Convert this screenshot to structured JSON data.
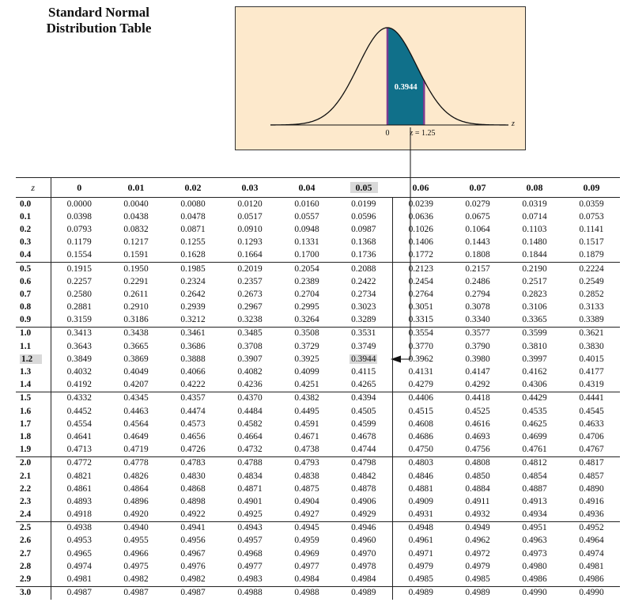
{
  "title": [
    "Standard Normal",
    "Distribution Table"
  ],
  "figure": {
    "area_value": "0.3944",
    "zero_label": "0",
    "z_label": "z = 1.25",
    "axis_label": "z",
    "z_end": 1.25,
    "fill_color": "#10708a",
    "edge_color": "#7b3c8f",
    "background": "#fde9cc"
  },
  "table": {
    "corner_label": "z",
    "column_headers": [
      "0",
      "0.01",
      "0.02",
      "0.03",
      "0.04",
      "0.05",
      "0.06",
      "0.07",
      "0.08",
      "0.09"
    ],
    "highlight": {
      "row": "1.2",
      "column": "0.05",
      "value": "0.3944"
    },
    "rows": [
      {
        "z": "0.0",
        "v": [
          "0.0000",
          "0.0040",
          "0.0080",
          "0.0120",
          "0.0160",
          "0.0199",
          "0.0239",
          "0.0279",
          "0.0319",
          "0.0359"
        ]
      },
      {
        "z": "0.1",
        "v": [
          "0.0398",
          "0.0438",
          "0.0478",
          "0.0517",
          "0.0557",
          "0.0596",
          "0.0636",
          "0.0675",
          "0.0714",
          "0.0753"
        ]
      },
      {
        "z": "0.2",
        "v": [
          "0.0793",
          "0.0832",
          "0.0871",
          "0.0910",
          "0.0948",
          "0.0987",
          "0.1026",
          "0.1064",
          "0.1103",
          "0.1141"
        ]
      },
      {
        "z": "0.3",
        "v": [
          "0.1179",
          "0.1217",
          "0.1255",
          "0.1293",
          "0.1331",
          "0.1368",
          "0.1406",
          "0.1443",
          "0.1480",
          "0.1517"
        ]
      },
      {
        "z": "0.4",
        "v": [
          "0.1554",
          "0.1591",
          "0.1628",
          "0.1664",
          "0.1700",
          "0.1736",
          "0.1772",
          "0.1808",
          "0.1844",
          "0.1879"
        ]
      },
      {
        "z": "0.5",
        "v": [
          "0.1915",
          "0.1950",
          "0.1985",
          "0.2019",
          "0.2054",
          "0.2088",
          "0.2123",
          "0.2157",
          "0.2190",
          "0.2224"
        ]
      },
      {
        "z": "0.6",
        "v": [
          "0.2257",
          "0.2291",
          "0.2324",
          "0.2357",
          "0.2389",
          "0.2422",
          "0.2454",
          "0.2486",
          "0.2517",
          "0.2549"
        ]
      },
      {
        "z": "0.7",
        "v": [
          "0.2580",
          "0.2611",
          "0.2642",
          "0.2673",
          "0.2704",
          "0.2734",
          "0.2764",
          "0.2794",
          "0.2823",
          "0.2852"
        ]
      },
      {
        "z": "0.8",
        "v": [
          "0.2881",
          "0.2910",
          "0.2939",
          "0.2967",
          "0.2995",
          "0.3023",
          "0.3051",
          "0.3078",
          "0.3106",
          "0.3133"
        ]
      },
      {
        "z": "0.9",
        "v": [
          "0.3159",
          "0.3186",
          "0.3212",
          "0.3238",
          "0.3264",
          "0.3289",
          "0.3315",
          "0.3340",
          "0.3365",
          "0.3389"
        ]
      },
      {
        "z": "1.0",
        "v": [
          "0.3413",
          "0.3438",
          "0.3461",
          "0.3485",
          "0.3508",
          "0.3531",
          "0.3554",
          "0.3577",
          "0.3599",
          "0.3621"
        ]
      },
      {
        "z": "1.1",
        "v": [
          "0.3643",
          "0.3665",
          "0.3686",
          "0.3708",
          "0.3729",
          "0.3749",
          "0.3770",
          "0.3790",
          "0.3810",
          "0.3830"
        ]
      },
      {
        "z": "1.2",
        "v": [
          "0.3849",
          "0.3869",
          "0.3888",
          "0.3907",
          "0.3925",
          "0.3944",
          "0.3962",
          "0.3980",
          "0.3997",
          "0.4015"
        ]
      },
      {
        "z": "1.3",
        "v": [
          "0.4032",
          "0.4049",
          "0.4066",
          "0.4082",
          "0.4099",
          "0.4115",
          "0.4131",
          "0.4147",
          "0.4162",
          "0.4177"
        ]
      },
      {
        "z": "1.4",
        "v": [
          "0.4192",
          "0.4207",
          "0.4222",
          "0.4236",
          "0.4251",
          "0.4265",
          "0.4279",
          "0.4292",
          "0.4306",
          "0.4319"
        ]
      },
      {
        "z": "1.5",
        "v": [
          "0.4332",
          "0.4345",
          "0.4357",
          "0.4370",
          "0.4382",
          "0.4394",
          "0.4406",
          "0.4418",
          "0.4429",
          "0.4441"
        ]
      },
      {
        "z": "1.6",
        "v": [
          "0.4452",
          "0.4463",
          "0.4474",
          "0.4484",
          "0.4495",
          "0.4505",
          "0.4515",
          "0.4525",
          "0.4535",
          "0.4545"
        ]
      },
      {
        "z": "1.7",
        "v": [
          "0.4554",
          "0.4564",
          "0.4573",
          "0.4582",
          "0.4591",
          "0.4599",
          "0.4608",
          "0.4616",
          "0.4625",
          "0.4633"
        ]
      },
      {
        "z": "1.8",
        "v": [
          "0.4641",
          "0.4649",
          "0.4656",
          "0.4664",
          "0.4671",
          "0.4678",
          "0.4686",
          "0.4693",
          "0.4699",
          "0.4706"
        ]
      },
      {
        "z": "1.9",
        "v": [
          "0.4713",
          "0.4719",
          "0.4726",
          "0.4732",
          "0.4738",
          "0.4744",
          "0.4750",
          "0.4756",
          "0.4761",
          "0.4767"
        ]
      },
      {
        "z": "2.0",
        "v": [
          "0.4772",
          "0.4778",
          "0.4783",
          "0.4788",
          "0.4793",
          "0.4798",
          "0.4803",
          "0.4808",
          "0.4812",
          "0.4817"
        ]
      },
      {
        "z": "2.1",
        "v": [
          "0.4821",
          "0.4826",
          "0.4830",
          "0.4834",
          "0.4838",
          "0.4842",
          "0.4846",
          "0.4850",
          "0.4854",
          "0.4857"
        ]
      },
      {
        "z": "2.2",
        "v": [
          "0.4861",
          "0.4864",
          "0.4868",
          "0.4871",
          "0.4875",
          "0.4878",
          "0.4881",
          "0.4884",
          "0.4887",
          "0.4890"
        ]
      },
      {
        "z": "2.3",
        "v": [
          "0.4893",
          "0.4896",
          "0.4898",
          "0.4901",
          "0.4904",
          "0.4906",
          "0.4909",
          "0.4911",
          "0.4913",
          "0.4916"
        ]
      },
      {
        "z": "2.4",
        "v": [
          "0.4918",
          "0.4920",
          "0.4922",
          "0.4925",
          "0.4927",
          "0.4929",
          "0.4931",
          "0.4932",
          "0.4934",
          "0.4936"
        ]
      },
      {
        "z": "2.5",
        "v": [
          "0.4938",
          "0.4940",
          "0.4941",
          "0.4943",
          "0.4945",
          "0.4946",
          "0.4948",
          "0.4949",
          "0.4951",
          "0.4952"
        ]
      },
      {
        "z": "2.6",
        "v": [
          "0.4953",
          "0.4955",
          "0.4956",
          "0.4957",
          "0.4959",
          "0.4960",
          "0.4961",
          "0.4962",
          "0.4963",
          "0.4964"
        ]
      },
      {
        "z": "2.7",
        "v": [
          "0.4965",
          "0.4966",
          "0.4967",
          "0.4968",
          "0.4969",
          "0.4970",
          "0.4971",
          "0.4972",
          "0.4973",
          "0.4974"
        ]
      },
      {
        "z": "2.8",
        "v": [
          "0.4974",
          "0.4975",
          "0.4976",
          "0.4977",
          "0.4977",
          "0.4978",
          "0.4979",
          "0.4979",
          "0.4980",
          "0.4981"
        ]
      },
      {
        "z": "2.9",
        "v": [
          "0.4981",
          "0.4982",
          "0.4982",
          "0.4983",
          "0.4984",
          "0.4984",
          "0.4985",
          "0.4985",
          "0.4986",
          "0.4986"
        ]
      },
      {
        "z": "3.0",
        "v": [
          "0.4987",
          "0.4987",
          "0.4987",
          "0.4988",
          "0.4988",
          "0.4989",
          "0.4989",
          "0.4989",
          "0.4990",
          "0.4990"
        ]
      }
    ]
  }
}
